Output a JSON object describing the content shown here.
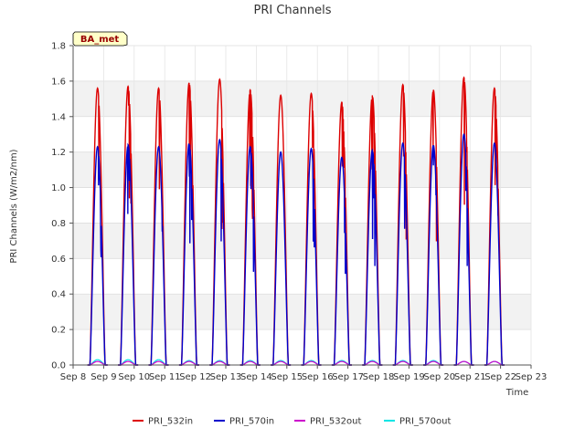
{
  "chart_data": {
    "type": "line",
    "title": "PRI Channels",
    "xlabel": "Time",
    "ylabel": "PRI Channels (W/m2/nm)",
    "ylim": [
      0,
      1.8
    ],
    "yticks": [
      0.0,
      0.2,
      0.4,
      0.6,
      0.8,
      1.0,
      1.2,
      1.4,
      1.6,
      1.8
    ],
    "ytick_labels": [
      "0.0",
      "0.2",
      "0.4",
      "0.6",
      "0.8",
      "1.0",
      "1.2",
      "1.4",
      "1.6",
      "1.8"
    ],
    "xlim": [
      8,
      23
    ],
    "xticks": [
      8,
      9,
      10,
      11,
      12,
      13,
      14,
      15,
      16,
      17,
      18,
      19,
      20,
      21,
      22,
      23
    ],
    "xtick_labels": [
      "Sep 8",
      "Sep 9",
      "Sep 10",
      "Sep 11",
      "Sep 12",
      "Sep 13",
      "Sep 14",
      "Sep 15",
      "Sep 16",
      "Sep 17",
      "Sep 18",
      "Sep 19",
      "Sep 20",
      "Sep 21",
      "Sep 22",
      "Sep 23"
    ],
    "site_label": "BA_met",
    "legend_position": "bottom",
    "description": "Daily diurnal peaks; each day from ~6:00 to ~18:00 with peak around noon",
    "series": [
      {
        "name": "PRI_532in",
        "color": "#dd0000",
        "daily_peaks": [
          1.56,
          1.57,
          1.56,
          1.59,
          1.61,
          1.55,
          1.52,
          1.53,
          1.48,
          1.52,
          1.58,
          1.55,
          1.62,
          1.56
        ]
      },
      {
        "name": "PRI_570in",
        "color": "#0000cc",
        "daily_peaks": [
          1.23,
          1.24,
          1.23,
          1.25,
          1.27,
          1.23,
          1.2,
          1.22,
          1.17,
          1.21,
          1.25,
          1.24,
          1.3,
          1.25
        ]
      },
      {
        "name": "PRI_532out",
        "color": "#cc00cc",
        "daily_peaks": [
          0.02,
          0.02,
          0.02,
          0.02,
          0.02,
          0.02,
          0.02,
          0.02,
          0.02,
          0.02,
          0.02,
          0.02,
          0.02,
          0.02
        ]
      },
      {
        "name": "PRI_570out",
        "color": "#00e5e5",
        "daily_peaks": [
          0.03,
          0.03,
          0.03,
          0.025,
          0.025,
          0.025,
          0.025,
          0.025,
          0.025,
          0.025,
          0.025,
          0.025,
          0.02,
          0.02
        ]
      }
    ],
    "day_starts": [
      8.55,
      9.55,
      10.55,
      11.55,
      12.55,
      13.55,
      14.55,
      15.55,
      16.55,
      17.55,
      18.55,
      19.55,
      20.55,
      21.55
    ]
  }
}
